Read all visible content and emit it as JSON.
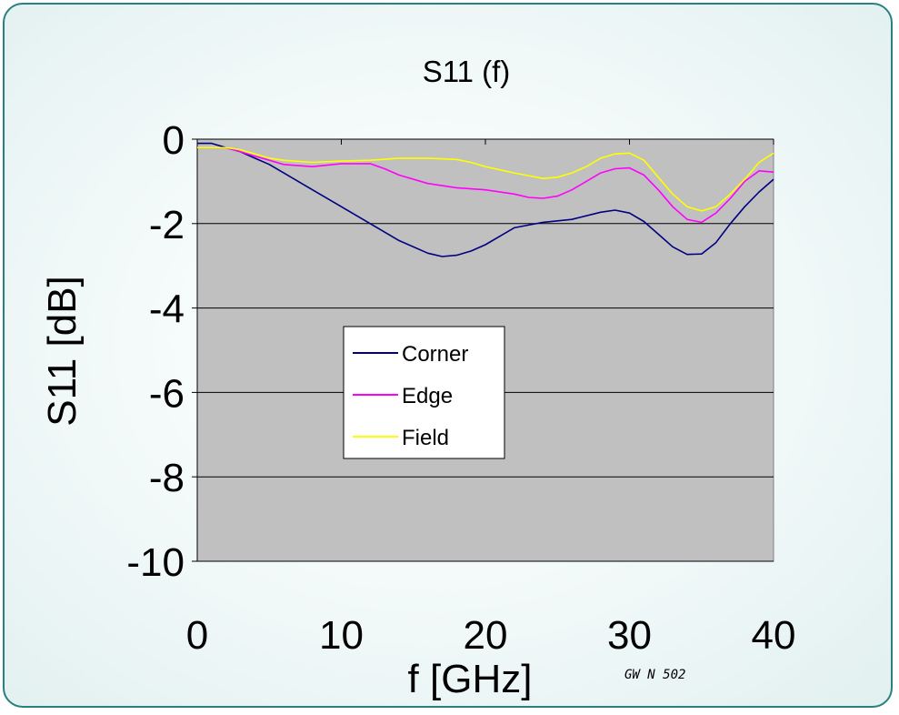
{
  "chart_data": {
    "type": "line",
    "title": "S11 (f)",
    "xlabel": "f [GHz]",
    "ylabel": "S11 [dB]",
    "xlim": [
      0,
      40
    ],
    "ylim": [
      -10,
      0
    ],
    "x_ticks": [
      0,
      10,
      20,
      30,
      40
    ],
    "y_ticks": [
      0,
      -2,
      -4,
      -6,
      -8,
      -10
    ],
    "grid": "horizontal",
    "plot_background": "#c0c0c0",
    "legend_position": "center-left",
    "series": [
      {
        "name": "Corner",
        "color": "#000080",
        "x": [
          0,
          1,
          2,
          3,
          4,
          5,
          6,
          8,
          10,
          12,
          14,
          16,
          17,
          18,
          19,
          20,
          21,
          22,
          24,
          26,
          28,
          29,
          30,
          31,
          32,
          33,
          34,
          35,
          36,
          37,
          38,
          39,
          40
        ],
        "y": [
          -0.1,
          -0.1,
          -0.2,
          -0.3,
          -0.45,
          -0.6,
          -0.8,
          -1.2,
          -1.6,
          -2.0,
          -2.4,
          -2.7,
          -2.78,
          -2.75,
          -2.65,
          -2.5,
          -2.3,
          -2.1,
          -1.97,
          -1.9,
          -1.73,
          -1.68,
          -1.75,
          -1.95,
          -2.25,
          -2.55,
          -2.73,
          -2.72,
          -2.45,
          -2.0,
          -1.6,
          -1.25,
          -0.95
        ]
      },
      {
        "name": "Edge",
        "color": "#ff00ff",
        "x": [
          0,
          1,
          2,
          3,
          4,
          5,
          6,
          8,
          10,
          12,
          13,
          14,
          16,
          18,
          20,
          22,
          23,
          24,
          25,
          26,
          27,
          28,
          29,
          30,
          31,
          32,
          33,
          34,
          35,
          36,
          37,
          38,
          39,
          40
        ],
        "y": [
          -0.2,
          -0.2,
          -0.2,
          -0.3,
          -0.4,
          -0.5,
          -0.6,
          -0.65,
          -0.58,
          -0.58,
          -0.7,
          -0.85,
          -1.05,
          -1.15,
          -1.2,
          -1.3,
          -1.38,
          -1.4,
          -1.35,
          -1.2,
          -1.0,
          -0.8,
          -0.7,
          -0.68,
          -0.85,
          -1.2,
          -1.6,
          -1.9,
          -1.97,
          -1.75,
          -1.4,
          -1.0,
          -0.75,
          -0.78
        ]
      },
      {
        "name": "Field",
        "color": "#ffff00",
        "x": [
          0,
          1,
          2,
          3,
          4,
          5,
          6,
          8,
          10,
          12,
          14,
          16,
          18,
          19,
          20,
          22,
          24,
          25,
          26,
          27,
          28,
          29,
          30,
          31,
          32,
          33,
          34,
          35,
          36,
          37,
          38,
          39,
          40
        ],
        "y": [
          -0.2,
          -0.2,
          -0.2,
          -0.25,
          -0.35,
          -0.45,
          -0.5,
          -0.55,
          -0.52,
          -0.5,
          -0.45,
          -0.45,
          -0.48,
          -0.55,
          -0.65,
          -0.8,
          -0.93,
          -0.9,
          -0.8,
          -0.65,
          -0.45,
          -0.35,
          -0.33,
          -0.5,
          -0.9,
          -1.3,
          -1.6,
          -1.7,
          -1.6,
          -1.3,
          -0.95,
          -0.55,
          -0.33
        ]
      }
    ],
    "annotations": [
      "GW N 502"
    ]
  }
}
